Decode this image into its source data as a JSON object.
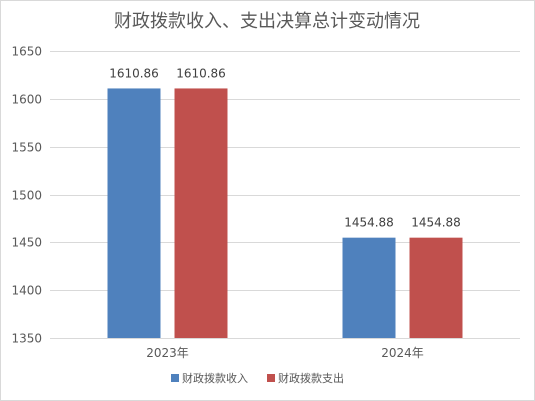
{
  "chart_data": {
    "type": "bar",
    "title": "财政拨款收入、支出决算总计变动情况",
    "categories": [
      "2023年",
      "2024年"
    ],
    "series": [
      {
        "name": "财政拨款收入",
        "values": [
          1610.86,
          1454.88
        ],
        "color": "#4f81bd"
      },
      {
        "name": "财政拨款支出",
        "values": [
          1610.86,
          1454.88
        ],
        "color": "#c0504d"
      }
    ],
    "ylim": [
      1350,
      1650
    ],
    "yticks": [
      1350,
      1400,
      1450,
      1500,
      1550,
      1600,
      1650
    ],
    "grid": true,
    "legend_position": "bottom",
    "gridline_color": "#d9d9d9"
  }
}
